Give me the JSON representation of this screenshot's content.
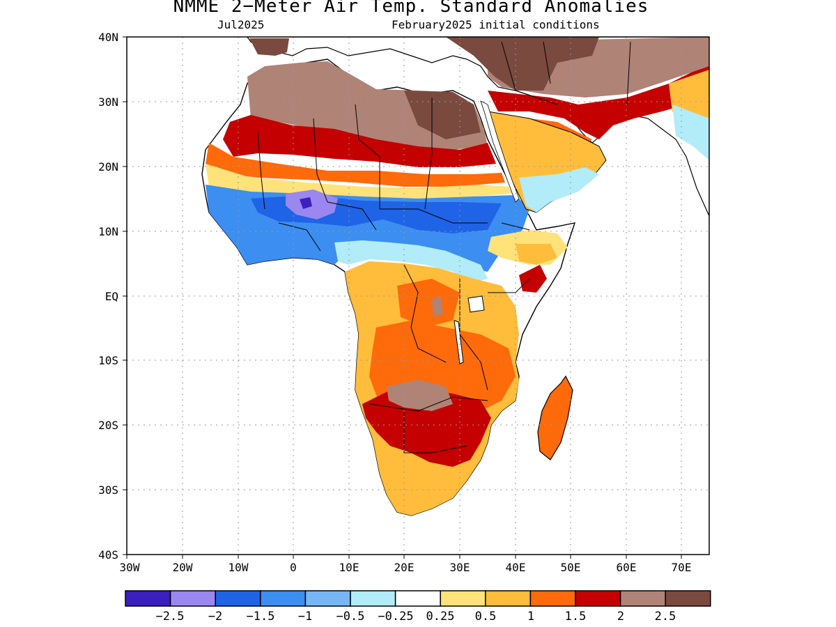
{
  "title": "NMME 2−Meter Air Temp. Standard Anomalies",
  "subtitle_left": "Jul2025",
  "subtitle_right": "February2025 initial conditions",
  "lat_labels": [
    "40N",
    "30N",
    "20N",
    "10N",
    "EQ",
    "10S",
    "20S",
    "30S",
    "40S"
  ],
  "lon_labels": [
    "30W",
    "20W",
    "10W",
    "0",
    "10E",
    "20E",
    "30E",
    "40E",
    "50E",
    "60E",
    "70E"
  ],
  "legend": {
    "colors": [
      "#3b1fbf",
      "#9a87f0",
      "#1f63e6",
      "#3c8ef0",
      "#77b6f5",
      "#b1ecf8",
      "#ffffff",
      "#ffe27a",
      "#ffbd3b",
      "#ff6a0a",
      "#c40000",
      "#b08377",
      "#7a4a3f"
    ],
    "labels": [
      "−2.5",
      "−2",
      "−1.5",
      "−1",
      "−0.5",
      "−0.25",
      "0.25",
      "0.5",
      "1",
      "1.5",
      "2",
      "2.5"
    ]
  }
}
